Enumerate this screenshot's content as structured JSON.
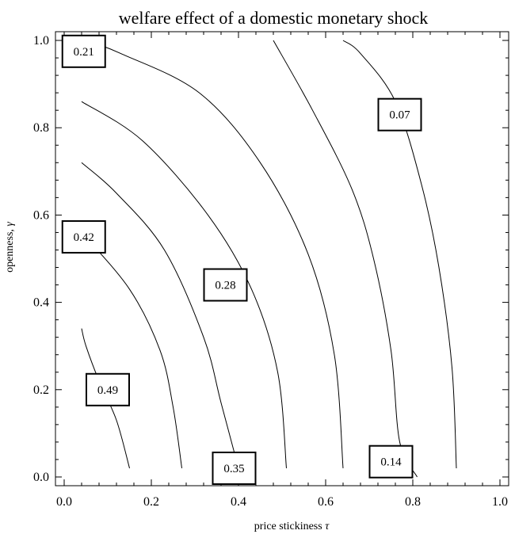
{
  "chart_data": {
    "type": "contour",
    "title": "welfare effect of a domestic monetary shock",
    "xlabel": "price stickiness",
    "xlabel_symbol": "τ",
    "ylabel": "openness,",
    "ylabel_symbol": "γ",
    "xlim": [
      0,
      1
    ],
    "ylim": [
      0,
      1
    ],
    "xticks": [
      "0.0",
      "0.2",
      "0.4",
      "0.6",
      "0.8",
      "1.0"
    ],
    "yticks": [
      "0.0",
      "0.2",
      "0.4",
      "0.6",
      "0.8",
      "1.0"
    ],
    "grid": false,
    "contours": [
      {
        "level": "0.07",
        "points": [
          [
            0.9,
            0.02
          ],
          [
            0.89,
            0.25
          ],
          [
            0.86,
            0.48
          ],
          [
            0.82,
            0.67
          ],
          [
            0.76,
            0.86
          ],
          [
            0.68,
            0.97
          ],
          [
            0.64,
            1.0
          ]
        ]
      },
      {
        "level": "0.14",
        "points": [
          [
            0.81,
            0.0
          ],
          [
            0.77,
            0.08
          ],
          [
            0.75,
            0.29
          ],
          [
            0.71,
            0.5
          ],
          [
            0.66,
            0.66
          ],
          [
            0.57,
            0.84
          ],
          [
            0.48,
            1.0
          ]
        ]
      },
      {
        "level": "0.21",
        "points": [
          [
            0.64,
            0.02
          ],
          [
            0.62,
            0.28
          ],
          [
            0.56,
            0.51
          ],
          [
            0.45,
            0.72
          ],
          [
            0.31,
            0.88
          ],
          [
            0.13,
            0.97
          ],
          [
            0.05,
            1.0
          ]
        ]
      },
      {
        "level": "0.28",
        "points": [
          [
            0.51,
            0.02
          ],
          [
            0.49,
            0.24
          ],
          [
            0.43,
            0.43
          ],
          [
            0.33,
            0.6
          ],
          [
            0.18,
            0.77
          ],
          [
            0.04,
            0.86
          ]
        ]
      },
      {
        "level": "0.35",
        "points": [
          [
            0.27,
            0.02
          ],
          [
            0.25,
            0.16
          ],
          [
            0.22,
            0.29
          ],
          [
            0.15,
            0.43
          ],
          [
            0.04,
            0.56
          ]
        ]
      },
      {
        "level": "0.42",
        "points": [
          [
            0.4,
            0.02
          ],
          [
            0.36,
            0.17
          ],
          [
            0.32,
            0.32
          ],
          [
            0.23,
            0.52
          ],
          [
            0.12,
            0.65
          ],
          [
            0.04,
            0.72
          ]
        ]
      },
      {
        "level": "0.49",
        "points": [
          [
            0.15,
            0.02
          ],
          [
            0.12,
            0.13
          ],
          [
            0.08,
            0.22
          ],
          [
            0.05,
            0.3
          ],
          [
            0.04,
            0.34
          ]
        ]
      }
    ],
    "labels": [
      {
        "text": "0.07",
        "x": 0.77,
        "y": 0.83
      },
      {
        "text": "0.14",
        "x": 0.75,
        "y": 0.035
      },
      {
        "text": "0.21",
        "x": 0.045,
        "y": 0.975
      },
      {
        "text": "0.28",
        "x": 0.37,
        "y": 0.44
      },
      {
        "text": "0.35",
        "x": 0.39,
        "y": 0.02
      },
      {
        "text": "0.42",
        "x": 0.045,
        "y": 0.55
      },
      {
        "text": "0.49",
        "x": 0.1,
        "y": 0.2
      }
    ]
  }
}
